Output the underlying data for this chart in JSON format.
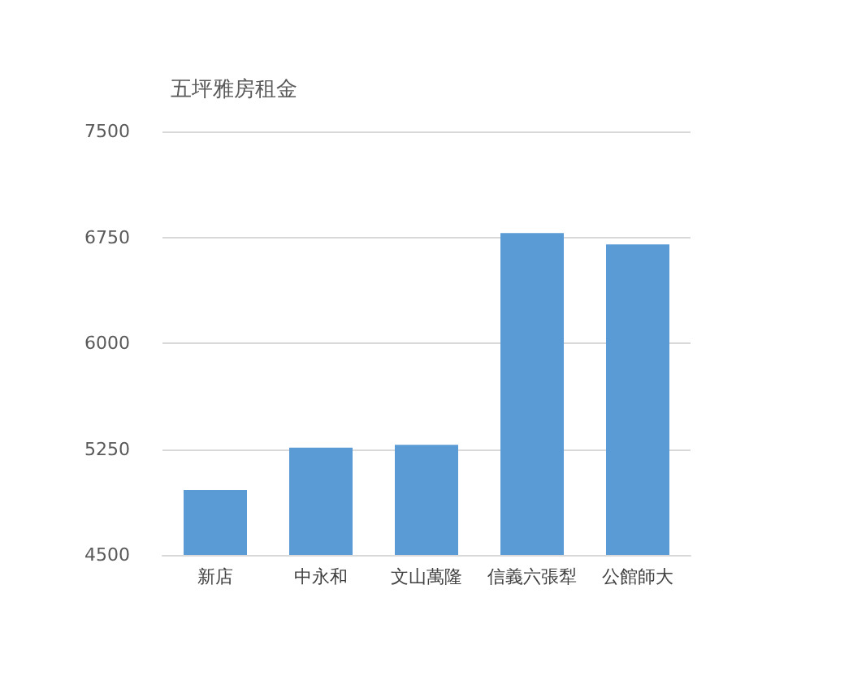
{
  "chart_data": {
    "type": "bar",
    "title": "五坪雅房租金",
    "categories": [
      "新店",
      "中永和",
      "文山萬隆",
      "信義六張犁",
      "公館師大"
    ],
    "values": [
      4960,
      5260,
      5280,
      6780,
      6700
    ],
    "color": "#5b9bd5",
    "ylim": [
      4500,
      7500
    ],
    "yticks": [
      4500,
      5250,
      6000,
      6750,
      7500
    ],
    "grid": "y"
  }
}
